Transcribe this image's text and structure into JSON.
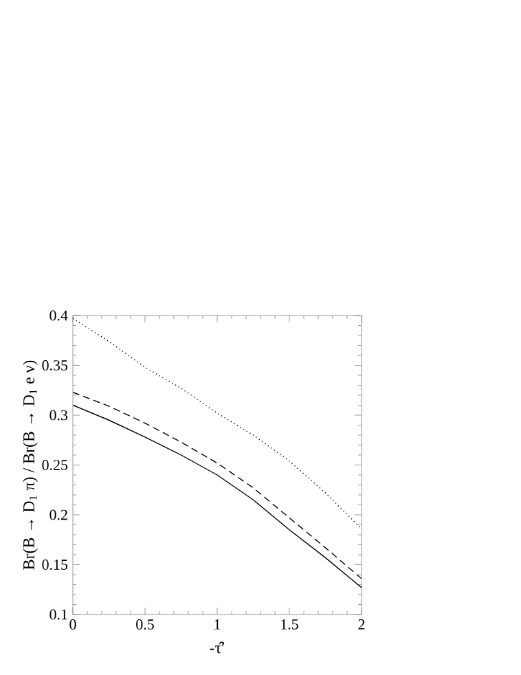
{
  "chart_data": {
    "type": "line",
    "xlabel": "-τ̂′",
    "ylabel": "Br(B → D$_{1}$ π) / Br(B → D$_{1}$ e ν)",
    "x": [
      0,
      0.25,
      0.5,
      0.75,
      1,
      1.25,
      1.5,
      1.75,
      2
    ],
    "xlim": [
      0,
      2
    ],
    "ylim": [
      0.1,
      0.4
    ],
    "xticks": [
      0,
      0.5,
      1,
      1.5,
      2
    ],
    "yticks": [
      0.1,
      0.15,
      0.2,
      0.25,
      0.3,
      0.35,
      0.4
    ],
    "marker": "none",
    "series": [
      {
        "color": "#000000",
        "line_style": "solid",
        "values": [
          0.31,
          0.295,
          0.278,
          0.26,
          0.24,
          0.215,
          0.185,
          0.157,
          0.127
        ]
      },
      {
        "color": "#000000",
        "line_style": "dashed",
        "values": [
          0.323,
          0.309,
          0.292,
          0.273,
          0.252,
          0.227,
          0.197,
          0.167,
          0.136
        ]
      },
      {
        "color": "#000000",
        "line_style": "dotted",
        "values": [
          0.397,
          0.374,
          0.348,
          0.327,
          0.302,
          0.28,
          0.254,
          0.222,
          0.186
        ]
      }
    ]
  }
}
